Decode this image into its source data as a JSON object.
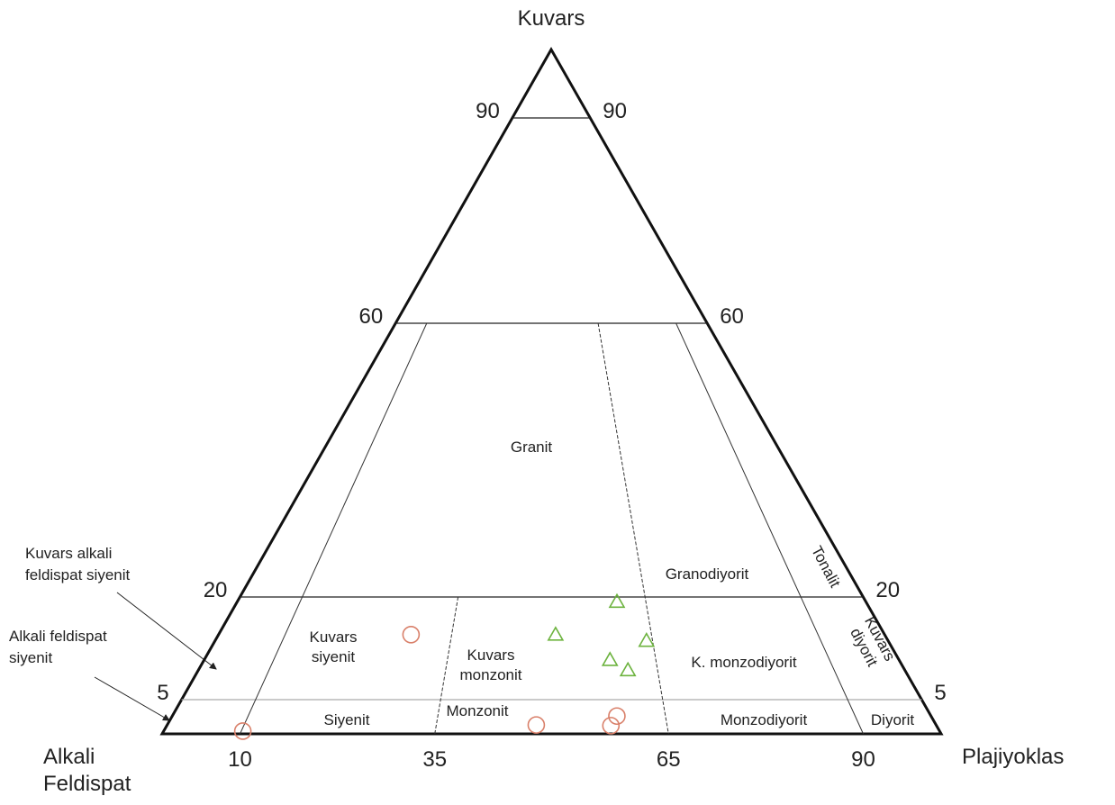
{
  "chart_data": {
    "type": "ternary",
    "apex_label": "Kuvars",
    "left_label": [
      "Alkali",
      "Feldispat"
    ],
    "right_label": "Plajiyoklas",
    "qticks": [
      90,
      60,
      20,
      5
    ],
    "pticks": [
      10,
      35,
      65,
      90
    ],
    "fields": {
      "granit": "Granit",
      "granodiyorit": "Granodiyorit",
      "tonalit": "Tonalit",
      "kuvars_siyenit": [
        "Kuvars",
        "siyenit"
      ],
      "kuvars_monzonit": [
        "Kuvars",
        "monzonit"
      ],
      "k_monzodiyorit": "K. monzodiyorit",
      "kuvars_diyorit": [
        "Kuvars",
        "diyorit"
      ],
      "siyenit": "Siyenit",
      "monzonit": "Monzonit",
      "monzodiyorit": "Monzodiyorit",
      "diyorit": "Diyorit",
      "kuvars_alkali": [
        "Kuvars alkali",
        "feldispat siyenit"
      ],
      "alkali": [
        "Alkali feldispat",
        "siyenit"
      ]
    },
    "series": [
      {
        "marker": "circle",
        "color": "#d9806a",
        "q": [
          14.5,
          0.4,
          1.3,
          1.2,
          2.6
        ],
        "p": [
          28.9,
          10.2,
          48.0,
          57.7,
          58.6
        ]
      },
      {
        "marker": "triangle",
        "color": "#6db33f",
        "q": [
          14.5,
          19.3,
          13.6,
          10.8,
          9.3
        ],
        "p": [
          50.6,
          60.4,
          64.1,
          58.4,
          60.8
        ]
      }
    ]
  }
}
